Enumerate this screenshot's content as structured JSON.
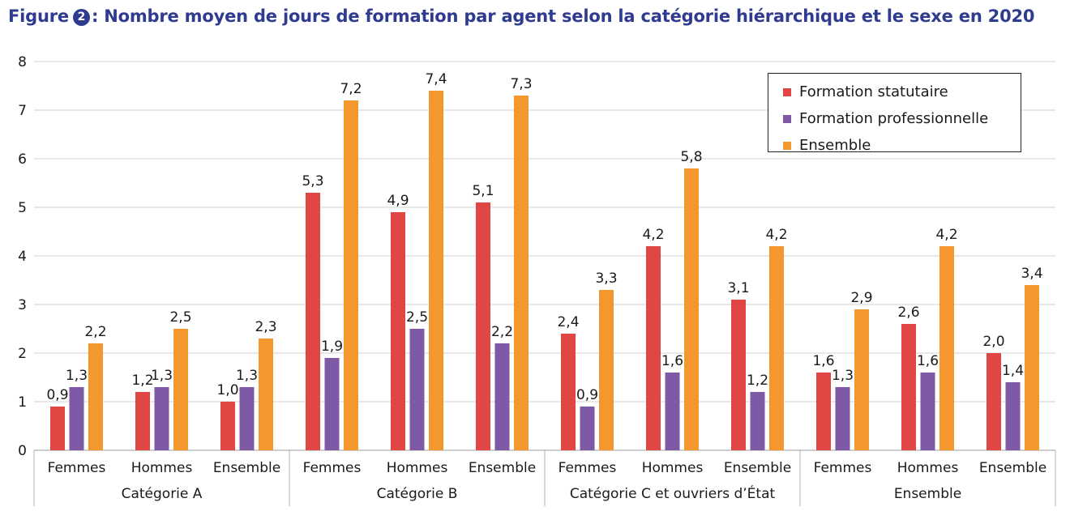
{
  "figure": {
    "prefix": "Figure",
    "number": "2",
    "title": ": Nombre moyen de jours de formation par agent selon la catégorie hiérarchique et le sexe en 2020"
  },
  "colors": {
    "statutaire": "#e04744",
    "professionnelle": "#7e5aa6",
    "ensemble": "#f4982e",
    "grid": "#d0d0d0",
    "title": "#2f3b8f"
  },
  "chart_data": {
    "type": "bar",
    "title": "Nombre moyen de jours de formation par agent selon la catégorie hiérarchique et le sexe en 2020",
    "ylim": [
      0,
      8
    ],
    "yticks": [
      "0",
      "1",
      "2",
      "3",
      "4",
      "5",
      "6",
      "7",
      "8"
    ],
    "grid": true,
    "legend_position": "top-right",
    "groups": [
      {
        "label": "Catégorie A",
        "categories": [
          "Femmes",
          "Hommes",
          "Ensemble"
        ]
      },
      {
        "label": "Catégorie B",
        "categories": [
          "Femmes",
          "Hommes",
          "Ensemble"
        ]
      },
      {
        "label": "Catégorie C et ouvriers d’État",
        "categories": [
          "Femmes",
          "Hommes",
          "Ensemble"
        ]
      },
      {
        "label": "Ensemble",
        "categories": [
          "Femmes",
          "Hommes",
          "Ensemble"
        ]
      }
    ],
    "series": [
      {
        "name": "Formation statutaire",
        "color": "#e04744",
        "values": [
          0.9,
          1.2,
          1.0,
          5.3,
          4.9,
          5.1,
          2.4,
          4.2,
          3.1,
          1.6,
          2.6,
          2.0
        ],
        "labels": [
          "0,9",
          "1,2",
          "1,0",
          "5,3",
          "4,9",
          "5,1",
          "2,4",
          "4,2",
          "3,1",
          "1,6",
          "2,6",
          "2,0"
        ]
      },
      {
        "name": "Formation professionnelle",
        "color": "#7e5aa6",
        "values": [
          1.3,
          1.3,
          1.3,
          1.9,
          2.5,
          2.2,
          0.9,
          1.6,
          1.2,
          1.3,
          1.6,
          1.4
        ],
        "labels": [
          "1,3",
          "1,3",
          "1,3",
          "1,9",
          "2,5",
          "2,2",
          "0,9",
          "1,6",
          "1,2",
          "1,3",
          "1,6",
          "1,4"
        ]
      },
      {
        "name": "Ensemble",
        "color": "#f4982e",
        "values": [
          2.2,
          2.5,
          2.3,
          7.2,
          7.4,
          7.3,
          3.3,
          5.8,
          4.2,
          2.9,
          4.2,
          3.4
        ],
        "labels": [
          "2,2",
          "2,5",
          "2,3",
          "7,2",
          "7,4",
          "7,3",
          "3,3",
          "5,8",
          "4,2",
          "2,9",
          "4,2",
          "3,4"
        ]
      }
    ]
  }
}
